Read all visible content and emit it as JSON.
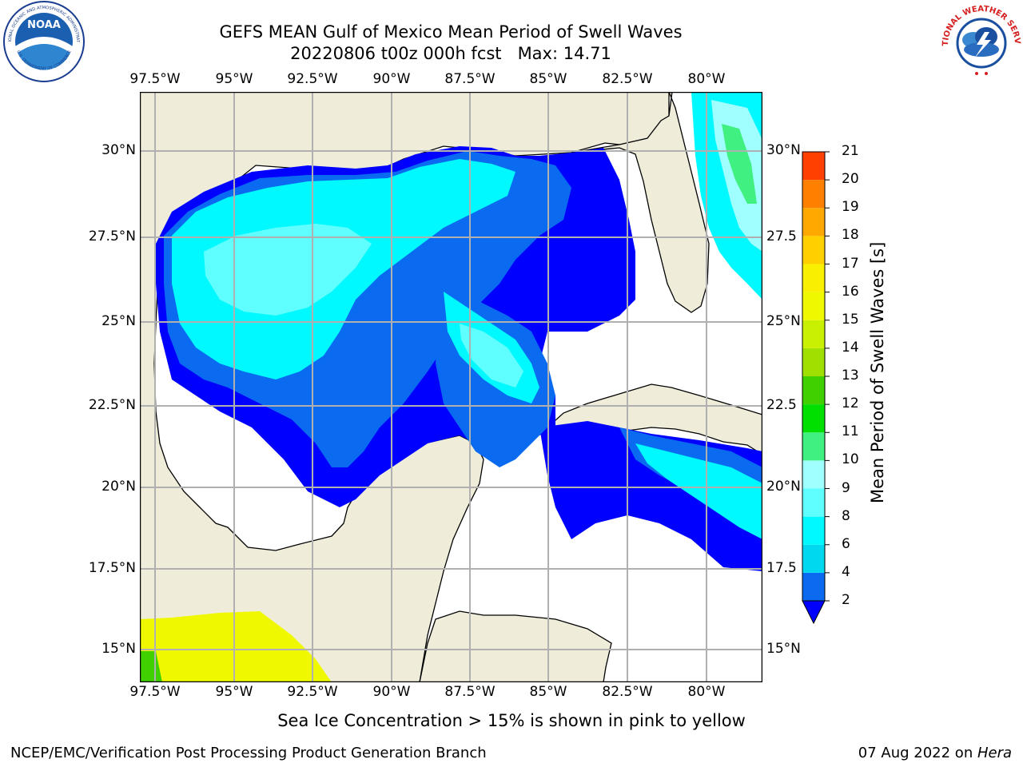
{
  "title": {
    "line1": "GEFS MEAN Gulf of Mexico Mean Period of Swell Waves",
    "line2": "20220806 t00z 000h fcst   Max: 14.71"
  },
  "map": {
    "lon_labels": [
      "97.5°W",
      "95°W",
      "92.5°W",
      "90°W",
      "87.5°W",
      "85°W",
      "82.5°W",
      "80°W"
    ],
    "lat_labels_left": [
      "30°N",
      "27.5°N",
      "25°N",
      "22.5°N",
      "20°N",
      "17.5°N",
      "15°N"
    ],
    "lat_labels_right": [
      "30°N",
      "27.5",
      "25°N",
      "22.5",
      "20°N",
      "17.5",
      "15°N"
    ],
    "land_color": "#efedda",
    "grid": true
  },
  "colorbar": {
    "label": "Mean Period of Swell Waves [s]",
    "ticks": [
      "2",
      "4",
      "6",
      "8",
      "9",
      "10",
      "11",
      "12",
      "13",
      "14",
      "15",
      "16",
      "17",
      "18",
      "19",
      "20",
      "21"
    ],
    "colors": [
      "#0a6bf0",
      "#00d8f0",
      "#00f8ff",
      "#60ffff",
      "#a0ffff",
      "#40f080",
      "#00e000",
      "#40d000",
      "#a0e000",
      "#c8f000",
      "#f0f800",
      "#f8f000",
      "#ffd000",
      "#ffa800",
      "#ff8000",
      "#ff4000",
      "#ff0000"
    ],
    "under_color": "#0000ff"
  },
  "logos": {
    "noaa": "NOAA",
    "noaa_ring_top": "NATIONAL OCEANIC AND ATMOSPHERIC ADMINISTRATION",
    "noaa_ring_bottom": "U.S. DEPARTMENT OF COMMERCE",
    "nws_ring": "NATIONAL WEATHER SERVICE"
  },
  "note": "Sea Ice Concentration > 15% is shown in pink to yellow",
  "footer": {
    "left": "NCEP/EMC/Verification Post Processing Product Generation Branch",
    "date": "07 Aug 2022 on ",
    "machine": "Hera"
  }
}
